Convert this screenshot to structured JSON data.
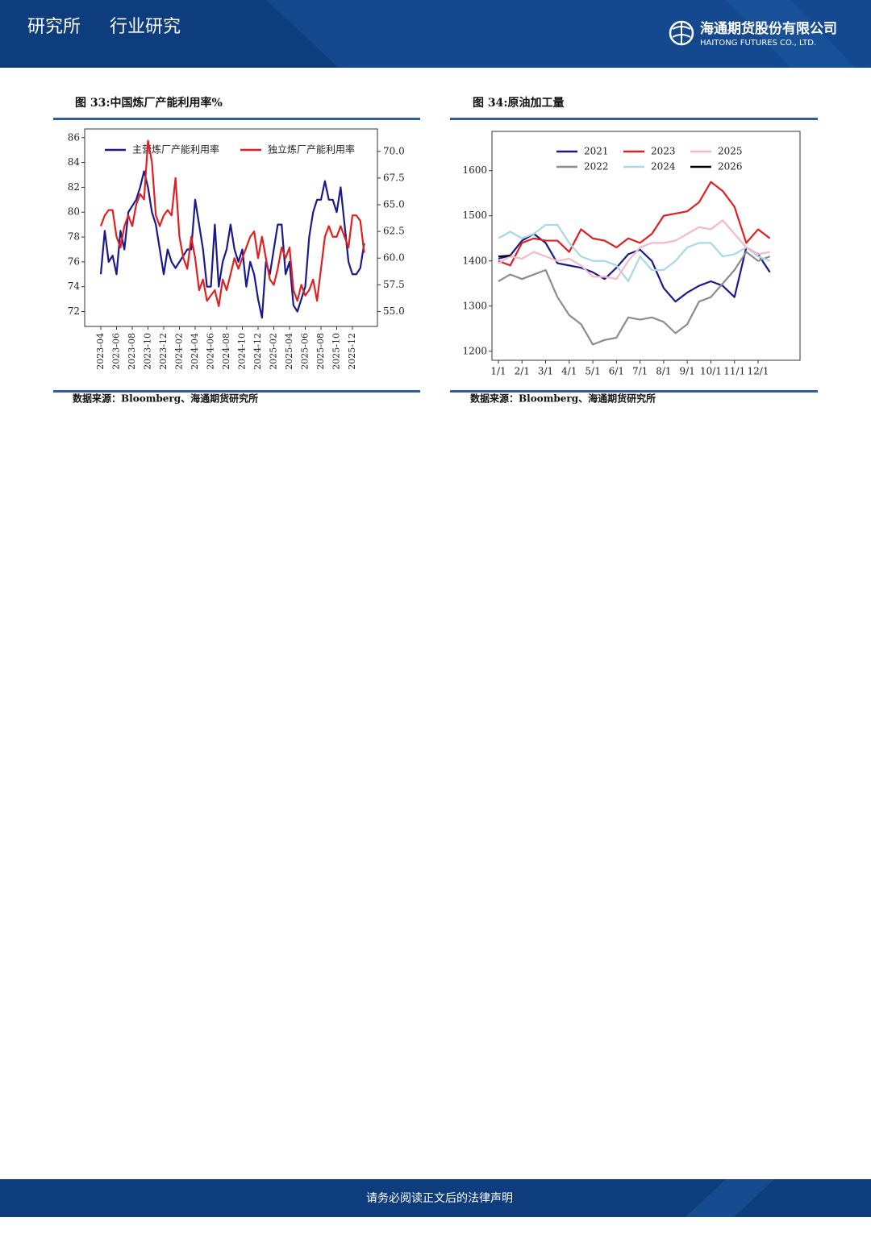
{
  "header": {
    "left": "研究所",
    "section": "行业研究",
    "logo_cn": "海通期货股份有限公司",
    "logo_en": "HAITONG FUTURES CO., LTD."
  },
  "footer": "请务必阅读正文后的法律声明",
  "chart_data": [
    {
      "type": "line",
      "title": "图 33:中国炼厂产能利用率%",
      "source": "数据来源：Bloomberg、海通期货研究所",
      "categories": [
        "2023-04",
        null,
        null,
        null,
        "2023-06",
        null,
        null,
        null,
        "2023-08",
        null,
        null,
        null,
        "2023-10",
        null,
        null,
        null,
        "2023-12",
        null,
        null,
        null,
        "2024-02",
        null,
        null,
        null,
        "2024-04",
        null,
        null,
        null,
        "2024-06",
        null,
        null,
        null,
        "2024-08",
        null,
        null,
        null,
        "2024-10",
        null,
        null,
        null,
        "2024-12",
        null,
        null,
        null,
        "2025-02",
        null,
        null,
        null,
        "2025-04",
        null,
        null,
        null,
        "2025-06",
        null,
        null,
        null,
        "2025-08",
        null,
        null,
        null,
        "2025-10",
        null,
        null,
        null,
        "2025-12",
        null,
        null,
        null
      ],
      "series": [
        {
          "name": "主营炼厂产能利用率",
          "color": "#1a1a8c",
          "values": [
            75,
            78.5,
            76,
            76.5,
            75,
            78.5,
            77,
            80,
            80.5,
            81,
            82,
            83.3,
            82,
            80,
            79,
            77,
            75,
            77,
            76,
            75.5,
            76,
            76.5,
            77,
            77,
            81,
            79,
            77,
            74,
            74,
            79,
            74,
            76,
            77,
            79,
            77,
            76,
            77,
            74,
            76,
            75,
            73,
            71.5,
            76,
            75,
            77,
            79,
            79,
            75,
            76,
            72.5,
            72,
            73,
            74,
            78,
            80,
            81,
            81,
            82.5,
            81,
            81,
            80,
            82,
            79,
            76,
            75,
            75,
            75.5,
            77.5
          ]
        },
        {
          "name": "独立炼厂产能利用率",
          "color": "#e02020",
          "axis": "y2",
          "values": [
            63,
            64,
            64.5,
            64.5,
            62,
            61,
            63,
            64,
            63,
            65,
            66,
            65.5,
            71,
            69,
            64,
            63,
            64,
            64.5,
            64,
            67.5,
            62,
            60,
            59,
            62,
            60,
            57,
            58,
            56,
            56.5,
            57,
            55.5,
            58,
            57,
            58.5,
            60,
            59,
            60,
            61,
            62,
            62.5,
            60,
            62,
            60,
            58,
            57.5,
            59,
            61,
            60,
            61,
            57,
            56,
            57.5,
            56.5,
            57,
            58,
            56,
            59,
            62,
            63,
            62,
            62,
            63,
            62,
            61,
            64,
            64,
            63.5,
            60.5
          ]
        }
      ],
      "ylim": [
        70.8,
        86.7
      ],
      "yticks": [
        72,
        74,
        76,
        78,
        80,
        82,
        84,
        86
      ],
      "y2lim": [
        53.6,
        72.1
      ],
      "y2ticks": [
        {
          "value": 55,
          "label": "55.0"
        },
        {
          "value": 57.5,
          "label": "57.5"
        },
        {
          "value": 60,
          "label": "60.0"
        },
        {
          "value": 62.5,
          "label": "62.5"
        },
        {
          "value": 65,
          "label": "65.0"
        },
        {
          "value": 67.5,
          "label": "67.5"
        },
        {
          "value": 70,
          "label": "70.0"
        }
      ],
      "legend": "top"
    },
    {
      "type": "line",
      "title": "图 34:原油加工量",
      "source": "数据来源：Bloomberg、海通期货研究所",
      "categories": [
        "1/1",
        null,
        "2/1",
        null,
        "3/1",
        null,
        "4/1",
        null,
        "5/1",
        null,
        "6/1",
        null,
        "7/1",
        null,
        "8/1",
        null,
        "9/1",
        null,
        "10/1",
        null,
        "11/1",
        null,
        "12/1",
        null
      ],
      "series": [
        {
          "name": "2021",
          "color": "#1a1a8c",
          "values": [
            1405,
            1412,
            1445,
            1460,
            1440,
            1395,
            1390,
            1385,
            1375,
            1360,
            1385,
            1415,
            1425,
            1400,
            1340,
            1310,
            1330,
            1345,
            1355,
            1345,
            1320,
            1430,
            1415,
            1375
          ]
        },
        {
          "name": "2022",
          "color": "#8c8c8c",
          "values": [
            1355,
            1370,
            1360,
            1370,
            1380,
            1320,
            1280,
            1260,
            1215,
            1225,
            1230,
            1275,
            1270,
            1275,
            1265,
            1240,
            1260,
            1310,
            1320,
            1350,
            1380,
            1420,
            1400,
            1410
          ]
        },
        {
          "name": "2023",
          "color": "#e02020",
          "values": [
            1400,
            1390,
            1440,
            1450,
            1445,
            1445,
            1420,
            1470,
            1450,
            1445,
            1430,
            1450,
            1440,
            1460,
            1500,
            1505,
            1510,
            1530,
            1575,
            1555,
            1520,
            1440,
            1470,
            1450
          ]
        },
        {
          "name": "2024",
          "color": "#a8d8e8",
          "values": [
            1450,
            1465,
            1450,
            1460,
            1480,
            1480,
            1440,
            1410,
            1400,
            1400,
            1390,
            1355,
            1410,
            1380,
            1380,
            1400,
            1430,
            1440,
            1440,
            1410,
            1415,
            1430,
            1410,
            1400
          ]
        },
        {
          "name": "2025",
          "color": "#f5b8c8",
          "values": [
            1395,
            1410,
            1405,
            1420,
            1410,
            1400,
            1405,
            1390,
            1365,
            1365,
            1360,
            1400,
            1430,
            1440,
            1440,
            1445,
            1460,
            1475,
            1470,
            1490,
            1460,
            1430,
            1415,
            1420
          ]
        },
        {
          "name": "2026",
          "color": "#000000",
          "values": [
            1410,
            1412,
            null,
            null,
            null,
            null,
            null,
            null,
            null,
            null,
            null,
            null,
            null,
            null,
            null,
            null,
            null,
            null,
            null,
            null,
            null,
            null,
            null,
            null
          ]
        }
      ],
      "ylim": [
        1180,
        1687
      ],
      "yticks": [
        1200,
        1300,
        1400,
        1500,
        1600
      ],
      "legend": "top"
    }
  ]
}
